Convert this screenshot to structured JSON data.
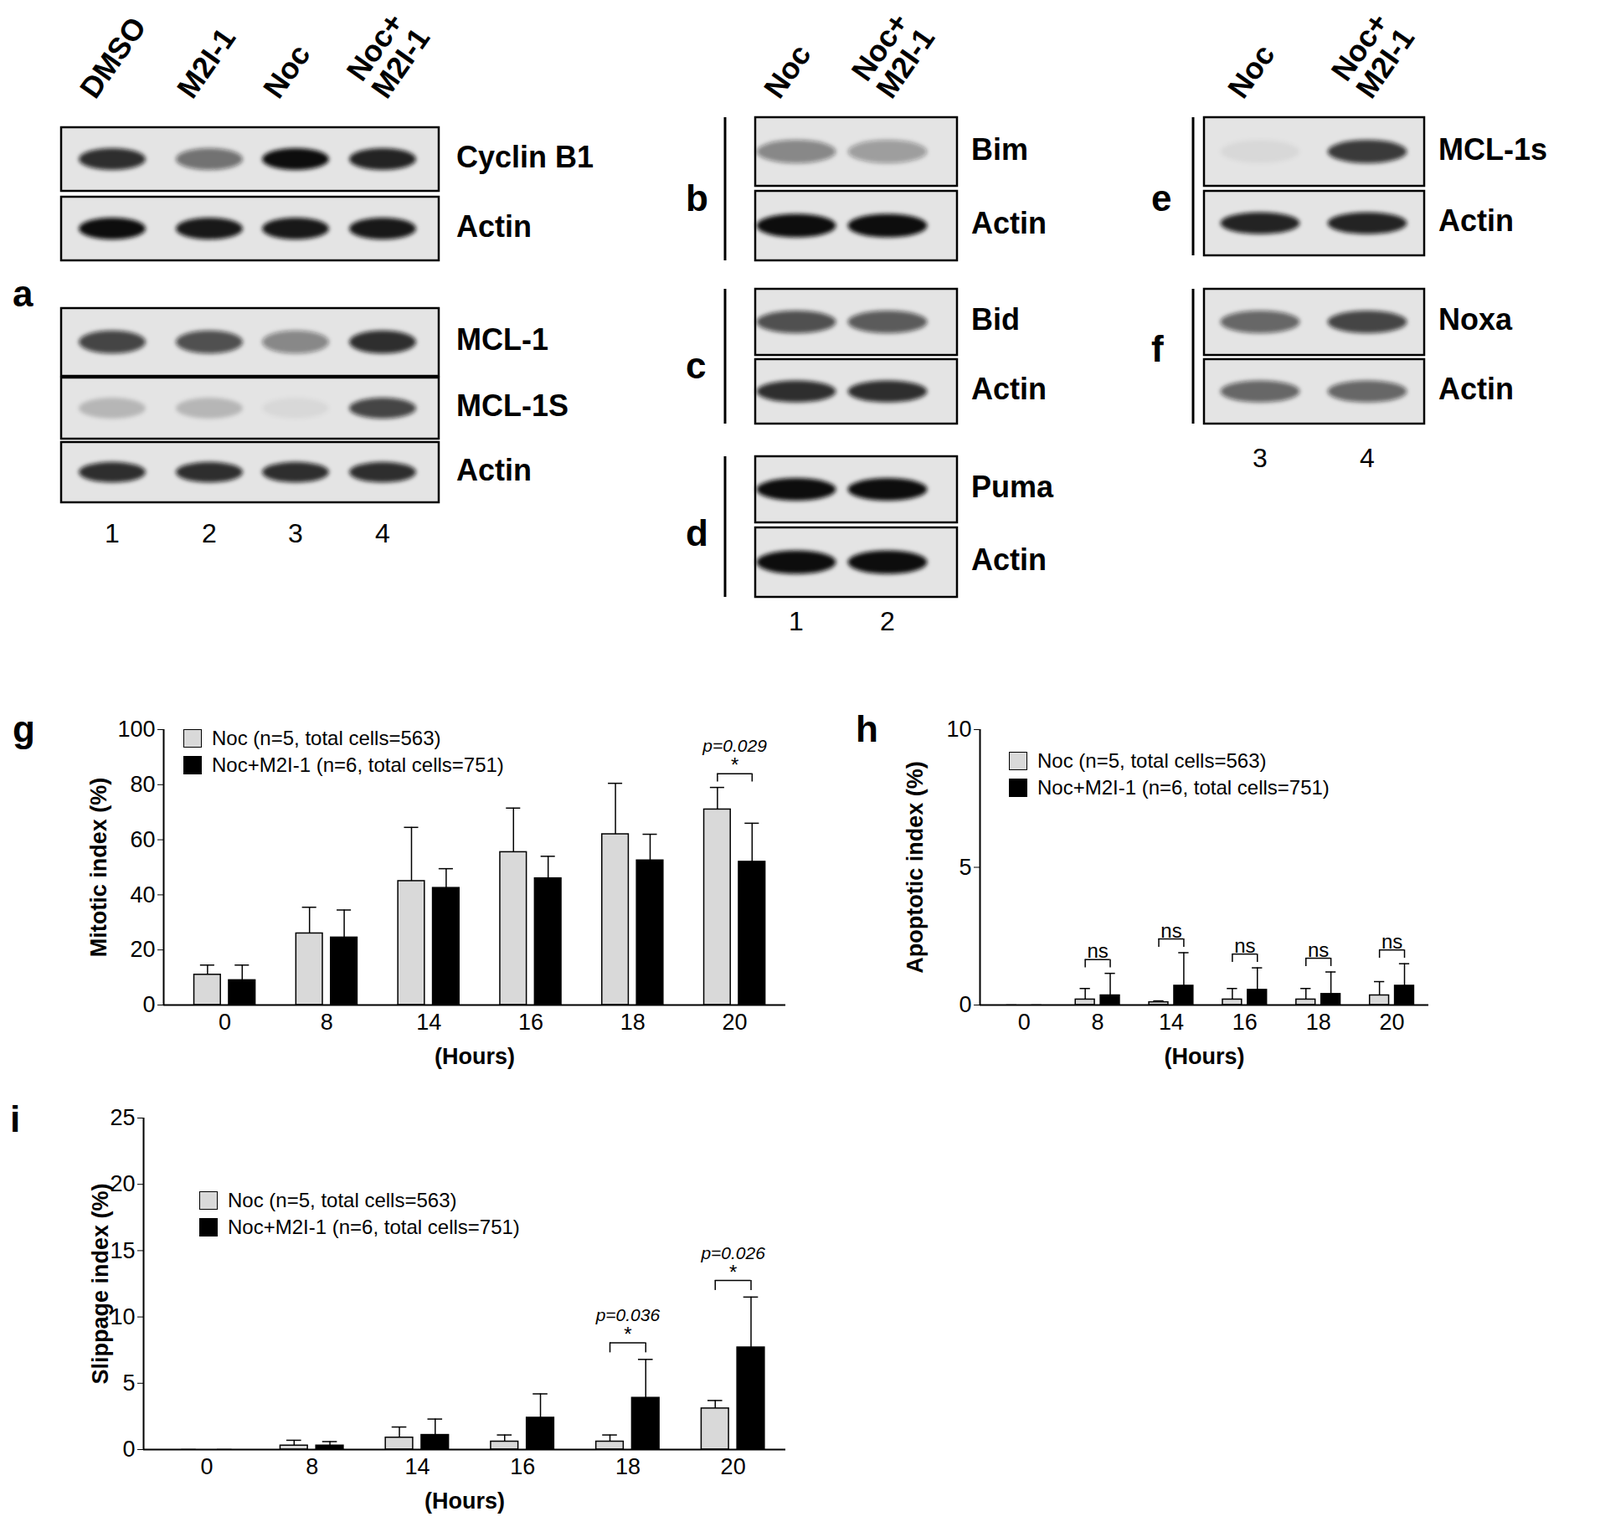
{
  "blots": [
    {
      "lanes": [
        "DMSO",
        "M2I-1",
        "Noc",
        "Noc+\nM2I-1"
      ],
      "lane_numbers": [
        "1",
        "2",
        "3",
        "4"
      ],
      "panels": [
        {
          "letter": "a",
          "rows": [
            {
              "label": "Cyclin B1",
              "intensity": [
                0.85,
                0.55,
                1.0,
                0.9
              ]
            },
            {
              "label": "Actin",
              "intensity": [
                1.0,
                0.95,
                0.95,
                0.95
              ]
            },
            {
              "label": "MCL-1",
              "intensity": [
                0.75,
                0.7,
                0.45,
                0.85
              ]
            },
            {
              "label": "MCL-1S",
              "intensity": [
                0.2,
                0.2,
                0.05,
                0.75
              ]
            },
            {
              "label": "Actin",
              "intensity": [
                0.85,
                0.85,
                0.85,
                0.85
              ]
            }
          ]
        }
      ]
    },
    {
      "lanes": [
        "Noc",
        "Noc+\nM2I-1"
      ],
      "lane_numbers": [
        "1",
        "2"
      ],
      "panels": [
        {
          "letter": "b",
          "rows": [
            {
              "label": "Bim",
              "intensity": [
                0.45,
                0.35
              ]
            },
            {
              "label": "Actin",
              "intensity": [
                1.0,
                1.0
              ]
            }
          ]
        },
        {
          "letter": "c",
          "rows": [
            {
              "label": "Bid",
              "intensity": [
                0.7,
                0.65
              ]
            },
            {
              "label": "Actin",
              "intensity": [
                0.85,
                0.85
              ]
            }
          ]
        },
        {
          "letter": "d",
          "rows": [
            {
              "label": "Puma",
              "intensity": [
                1.0,
                1.0
              ]
            },
            {
              "label": "Actin",
              "intensity": [
                1.0,
                1.0
              ]
            }
          ]
        }
      ]
    },
    {
      "lanes": [
        "Noc",
        "Noc+\nM2I-1"
      ],
      "lane_numbers": [
        "3",
        "4"
      ],
      "panels": [
        {
          "letter": "e",
          "rows": [
            {
              "label": "MCL-1s",
              "intensity": [
                0.05,
                0.8
              ]
            },
            {
              "label": "Actin",
              "intensity": [
                0.9,
                0.9
              ]
            }
          ]
        },
        {
          "letter": "f",
          "rows": [
            {
              "label": "Noxa",
              "intensity": [
                0.6,
                0.75
              ]
            },
            {
              "label": "Actin",
              "intensity": [
                0.6,
                0.6
              ]
            }
          ]
        }
      ]
    }
  ],
  "chart_data": [
    {
      "type": "bar",
      "panel": "g",
      "x_label": "(Hours)",
      "y_label": "Mitotic index (%)",
      "categories": [
        "0",
        "8",
        "14",
        "16",
        "18",
        "20"
      ],
      "series": [
        {
          "name": "Noc (n=5, total cells=563)",
          "color": "#d9d9d9",
          "values": [
            11,
            26,
            45,
            55.5,
            62,
            71
          ],
          "errors": [
            3.5,
            9.5,
            19.5,
            16,
            18.5,
            8
          ]
        },
        {
          "name": "Noc+M2I-1 (n=6, total cells=751)",
          "color": "#000000",
          "values": [
            9,
            24.5,
            42.5,
            46,
            52.5,
            52
          ],
          "errors": [
            5.5,
            10,
            7,
            8,
            9.5,
            14
          ]
        }
      ],
      "ylim": [
        0,
        100
      ],
      "yticks": [
        0,
        20,
        40,
        60,
        80,
        100
      ],
      "grid": false,
      "legend": "top-left",
      "annotations": [
        {
          "category": "20",
          "label": "*",
          "p_label": "p=0.029"
        }
      ]
    },
    {
      "type": "bar",
      "panel": "h",
      "x_label": "(Hours)",
      "y_label": "Apoptotic index (%)",
      "categories": [
        "0",
        "8",
        "14",
        "16",
        "18",
        "20"
      ],
      "series": [
        {
          "name": "Noc (n=5, total cells=563)",
          "color": "#d9d9d9",
          "values": [
            0,
            0.2,
            0.1,
            0.2,
            0.2,
            0.35
          ],
          "errors": [
            0,
            0.4,
            0.05,
            0.4,
            0.4,
            0.5
          ]
        },
        {
          "name": "Noc+M2I-1 (n=6, total cells=751)",
          "color": "#000000",
          "values": [
            0,
            0.35,
            0.7,
            0.55,
            0.4,
            0.7
          ],
          "errors": [
            0,
            0.8,
            1.2,
            0.8,
            0.8,
            0.8
          ]
        }
      ],
      "ylim": [
        0,
        10
      ],
      "yticks": [
        0,
        5,
        10
      ],
      "grid": false,
      "legend": "top-left",
      "annotations": [
        {
          "category": "8",
          "label": "ns"
        },
        {
          "category": "14",
          "label": "ns"
        },
        {
          "category": "16",
          "label": "ns"
        },
        {
          "category": "18",
          "label": "ns"
        },
        {
          "category": "20",
          "label": "ns"
        }
      ]
    },
    {
      "type": "bar",
      "panel": "i",
      "x_label": "(Hours)",
      "y_label": "Slippage index (%)",
      "categories": [
        "0",
        "8",
        "14",
        "16",
        "18",
        "20"
      ],
      "series": [
        {
          "name": "Noc (n=5, total cells=563)",
          "color": "#d9d9d9",
          "values": [
            0,
            0.3,
            0.9,
            0.6,
            0.6,
            3.1
          ],
          "errors": [
            0,
            0.4,
            0.8,
            0.5,
            0.5,
            0.6
          ]
        },
        {
          "name": "Noc+M2I-1 (n=6, total cells=751)",
          "color": "#000000",
          "values": [
            0,
            0.3,
            1.1,
            2.4,
            3.9,
            7.7
          ],
          "errors": [
            0,
            0.3,
            1.2,
            1.8,
            2.9,
            3.8
          ]
        }
      ],
      "ylim": [
        0,
        25
      ],
      "yticks": [
        0,
        5,
        10,
        15,
        20,
        25
      ],
      "grid": false,
      "legend": "top-left",
      "annotations": [
        {
          "category": "18",
          "label": "*",
          "p_label": "p=0.036"
        },
        {
          "category": "20",
          "label": "*",
          "p_label": "p=0.026"
        }
      ]
    }
  ]
}
